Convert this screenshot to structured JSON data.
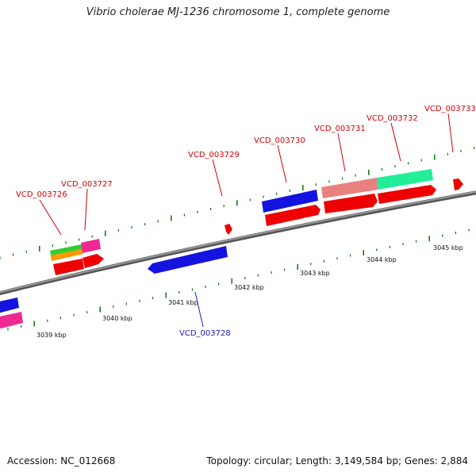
{
  "title": "Vibrio cholerae MJ-1236 chromosome 1, complete genome",
  "footer": {
    "accession": "Accession: NC_012668",
    "stats": "Topology: circular; Length: 3,149,584 bp; Genes: 2,884"
  },
  "scale_labels": [
    "3039 kbp",
    "3040 kbp",
    "3041 kbp",
    "3042 kbp",
    "3043 kbp",
    "3044 kbp",
    "3045 kbp"
  ],
  "gene_labels": [
    {
      "name": "VCD_003726",
      "color": "#d40000"
    },
    {
      "name": "VCD_003727",
      "color": "#d40000"
    },
    {
      "name": "VCD_003728",
      "color": "#1a1acc"
    },
    {
      "name": "VCD_003729",
      "color": "#d40000"
    },
    {
      "name": "VCD_003730",
      "color": "#d40000"
    },
    {
      "name": "VCD_003731",
      "color": "#d40000"
    },
    {
      "name": "VCD_003732",
      "color": "#d40000"
    },
    {
      "name": "VCD_003733",
      "color": "#d40000"
    }
  ],
  "colors": {
    "backbone": "#7a7a7a",
    "tick": "#007a00",
    "red_feature": "#ee0000",
    "blue_feature": "#1414e0",
    "pink_feature": "#ee2a92",
    "green_feature": "#33cc33",
    "orange_feature": "#ff9900",
    "salmon_feature": "#e88080",
    "mint_feature": "#22ee99"
  }
}
